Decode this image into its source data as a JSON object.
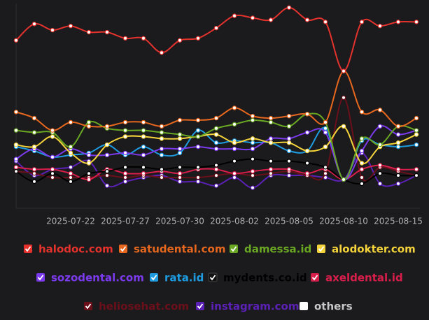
{
  "chart_data": {
    "type": "line",
    "categories": [
      null,
      null,
      null,
      "2025-07-22",
      null,
      null,
      "2025-07-27",
      null,
      null,
      "2025-07-30",
      null,
      null,
      "2025-08-02",
      null,
      null,
      "2025-08-05",
      null,
      null,
      "2025-08-10",
      null,
      null,
      "2025-08-15",
      null
    ],
    "ylim": [
      0,
      100
    ],
    "grid": false,
    "series": [
      {
        "name": "halodoc.com",
        "color": "#e5322d",
        "visible": true,
        "values": [
          82,
          90,
          87,
          89,
          86,
          86,
          83,
          83,
          76,
          82,
          83,
          88,
          94,
          93,
          92,
          98,
          92,
          91,
          67,
          91,
          89,
          91,
          91
        ]
      },
      {
        "name": "satudental.com",
        "color": "#e8671e",
        "visible": true,
        "values": [
          47,
          44,
          38,
          42,
          40,
          40,
          42,
          42,
          40,
          43,
          43,
          44,
          49,
          45,
          44,
          45,
          46,
          42,
          67,
          47,
          48,
          40,
          44
        ]
      },
      {
        "name": "damessa.id",
        "color": "#6aa823",
        "visible": true,
        "values": [
          38,
          37,
          37,
          30,
          42,
          39,
          38,
          38,
          37,
          36,
          35,
          39,
          41,
          43,
          42,
          40,
          46,
          42,
          14,
          34,
          31,
          40,
          38
        ]
      },
      {
        "name": "alodokter.com",
        "color": "#f5d33a",
        "visible": true,
        "values": [
          31,
          30,
          35,
          27,
          22,
          31,
          35,
          35,
          34,
          34,
          35,
          36,
          32,
          34,
          32,
          32,
          28,
          30,
          40,
          22,
          30,
          32,
          36
        ]
      },
      {
        "name": "sozodental.com",
        "color": "#7c3aed",
        "visible": true,
        "values": [
          24,
          29,
          25,
          29,
          26,
          26,
          27,
          26,
          29,
          29,
          30,
          29,
          29,
          29,
          34,
          34,
          37,
          37,
          14,
          28,
          40,
          36,
          38
        ]
      },
      {
        "name": "rata.id",
        "color": "#1e9be0",
        "visible": true,
        "values": [
          30,
          28,
          25,
          26,
          27,
          31,
          26,
          30,
          26,
          27,
          38,
          32,
          33,
          32,
          32,
          28,
          28,
          39,
          14,
          33,
          31,
          30,
          31
        ]
      },
      {
        "name": "mydents.co.id",
        "color": "#000000",
        "visible": true,
        "values": [
          18,
          13,
          17,
          13,
          17,
          18,
          20,
          20,
          19,
          20,
          20,
          21,
          23,
          24,
          23,
          23,
          22,
          20,
          14,
          12,
          17,
          16,
          16
        ]
      },
      {
        "name": "axeldental.id",
        "color": "#d81e4a",
        "visible": true,
        "values": [
          20,
          19,
          19,
          17,
          14,
          19,
          17,
          17,
          18,
          17,
          19,
          19,
          17,
          18,
          19,
          19,
          17,
          19,
          14,
          19,
          21,
          19,
          19
        ]
      },
      {
        "name": "heliosehat.com",
        "color": "#6b0f1a",
        "visible": true,
        "values": [
          18,
          17,
          15,
          15,
          15,
          16,
          15,
          16,
          15,
          15,
          15,
          16,
          17,
          16,
          17,
          18,
          16,
          17,
          54,
          15,
          20,
          18,
          16
        ]
      },
      {
        "name": "instagram.com",
        "color": "#5b21b6",
        "visible": true,
        "values": [
          23,
          16,
          19,
          20,
          23,
          11,
          13,
          15,
          16,
          13,
          13,
          11,
          15,
          10,
          16,
          16,
          16,
          15,
          14,
          27,
          12,
          12,
          16
        ]
      },
      {
        "name": "others",
        "color": "#ffffff",
        "visible": false,
        "values": [
          null,
          null,
          null,
          null,
          null,
          null,
          null,
          null,
          null,
          null,
          null,
          null,
          null,
          null,
          null,
          null,
          null,
          null,
          null,
          null,
          null,
          null,
          null
        ]
      }
    ]
  }
}
